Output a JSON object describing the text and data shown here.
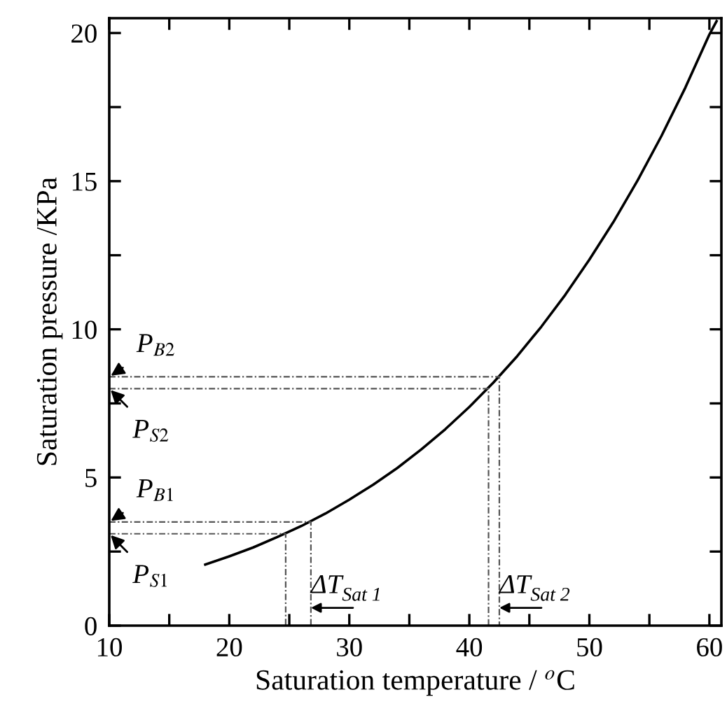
{
  "chart_data": {
    "type": "line",
    "xlabel": "Saturation temperature / $^{o}$C",
    "ylabel": "Saturation pressure /KPa",
    "xlim": [
      10,
      61
    ],
    "ylim": [
      0,
      20.5
    ],
    "xticks": [
      10,
      {
        "value": 15,
        "label": null
      },
      20,
      {
        "value": 25,
        "label": null
      },
      30,
      {
        "value": 35,
        "label": null
      },
      40,
      {
        "value": 45,
        "label": null
      },
      50,
      {
        "value": 55,
        "label": null
      },
      60
    ],
    "yticks": [
      0,
      {
        "value": 2.5,
        "label": null
      },
      5,
      {
        "value": 7.5,
        "label": null
      },
      10,
      {
        "value": 12.5,
        "label": null
      },
      15,
      {
        "value": 17.5,
        "label": null
      },
      20
    ],
    "grid": false,
    "legend": false,
    "marker": "none",
    "series": [
      {
        "color": "#000000",
        "line_style": "solid",
        "x": [
          18,
          20,
          22,
          24,
          26,
          28,
          30,
          32,
          34,
          36,
          38,
          40,
          42,
          44,
          46,
          48,
          50,
          52,
          54,
          56,
          58,
          60,
          60.6
        ],
        "values": [
          2.06,
          2.34,
          2.64,
          2.99,
          3.36,
          3.78,
          4.25,
          4.76,
          5.32,
          5.95,
          6.63,
          7.38,
          8.2,
          9.1,
          10.09,
          11.17,
          12.35,
          13.62,
          15.01,
          16.52,
          18.16,
          19.95,
          20.4
        ]
      },
      {
        "color": "#555555",
        "line_style": "dotted",
        "x": [
          10,
          26.8,
          26.8
        ],
        "values": [
          3.5,
          3.5,
          0
        ]
      },
      {
        "color": "#555555",
        "line_style": "dotted",
        "x": [
          10,
          24.7,
          24.7
        ],
        "values": [
          3.1,
          3.1,
          0
        ]
      },
      {
        "color": "#555555",
        "line_style": "dotted",
        "x": [
          10,
          42.5,
          42.5
        ],
        "values": [
          8.4,
          8.4,
          0
        ]
      },
      {
        "color": "#555555",
        "line_style": "dotted",
        "x": [
          10,
          41.6,
          41.6
        ],
        "values": [
          8.0,
          8.0,
          0
        ]
      }
    ],
    "annotations": [
      {
        "text": "P$_{B2}$",
        "x": 10,
        "y": 8.4
      },
      {
        "text": "P$_{S2}$",
        "x": 10,
        "y": 8.0
      },
      {
        "text": "P$_{B1}$",
        "x": 10,
        "y": 3.5
      },
      {
        "text": "P$_{S1}$",
        "x": 10,
        "y": 3.1
      },
      {
        "text": "ΔT$_{Sat 1}$",
        "x": 26.8,
        "y": 0.6
      },
      {
        "text": "ΔT$_{Sat 2}$",
        "x": 42.5,
        "y": 0.6
      }
    ]
  }
}
